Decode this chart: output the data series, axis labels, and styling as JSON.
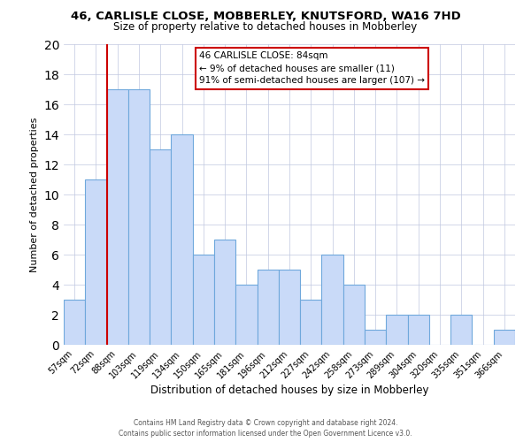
{
  "title": "46, CARLISLE CLOSE, MOBBERLEY, KNUTSFORD, WA16 7HD",
  "subtitle": "Size of property relative to detached houses in Mobberley",
  "xlabel": "Distribution of detached houses by size in Mobberley",
  "ylabel": "Number of detached properties",
  "bin_labels": [
    "57sqm",
    "72sqm",
    "88sqm",
    "103sqm",
    "119sqm",
    "134sqm",
    "150sqm",
    "165sqm",
    "181sqm",
    "196sqm",
    "212sqm",
    "227sqm",
    "242sqm",
    "258sqm",
    "273sqm",
    "289sqm",
    "304sqm",
    "320sqm",
    "335sqm",
    "351sqm",
    "366sqm"
  ],
  "bar_values": [
    3,
    11,
    17,
    17,
    13,
    14,
    6,
    7,
    4,
    5,
    5,
    3,
    6,
    4,
    1,
    2,
    2,
    0,
    2,
    0,
    1
  ],
  "bar_color": "#c9daf8",
  "bar_edge_color": "#6fa8dc",
  "property_line_index": 2,
  "property_line_color": "#cc0000",
  "ylim": [
    0,
    20
  ],
  "yticks": [
    0,
    2,
    4,
    6,
    8,
    10,
    12,
    14,
    16,
    18,
    20
  ],
  "annotation_text": "46 CARLISLE CLOSE: 84sqm\n← 9% of detached houses are smaller (11)\n91% of semi-detached houses are larger (107) →",
  "annotation_box_edge": "#cc0000",
  "footer_line1": "Contains HM Land Registry data © Crown copyright and database right 2024.",
  "footer_line2": "Contains public sector information licensed under the Open Government Licence v3.0.",
  "background_color": "#ffffff",
  "grid_color": "#c0c8e0"
}
